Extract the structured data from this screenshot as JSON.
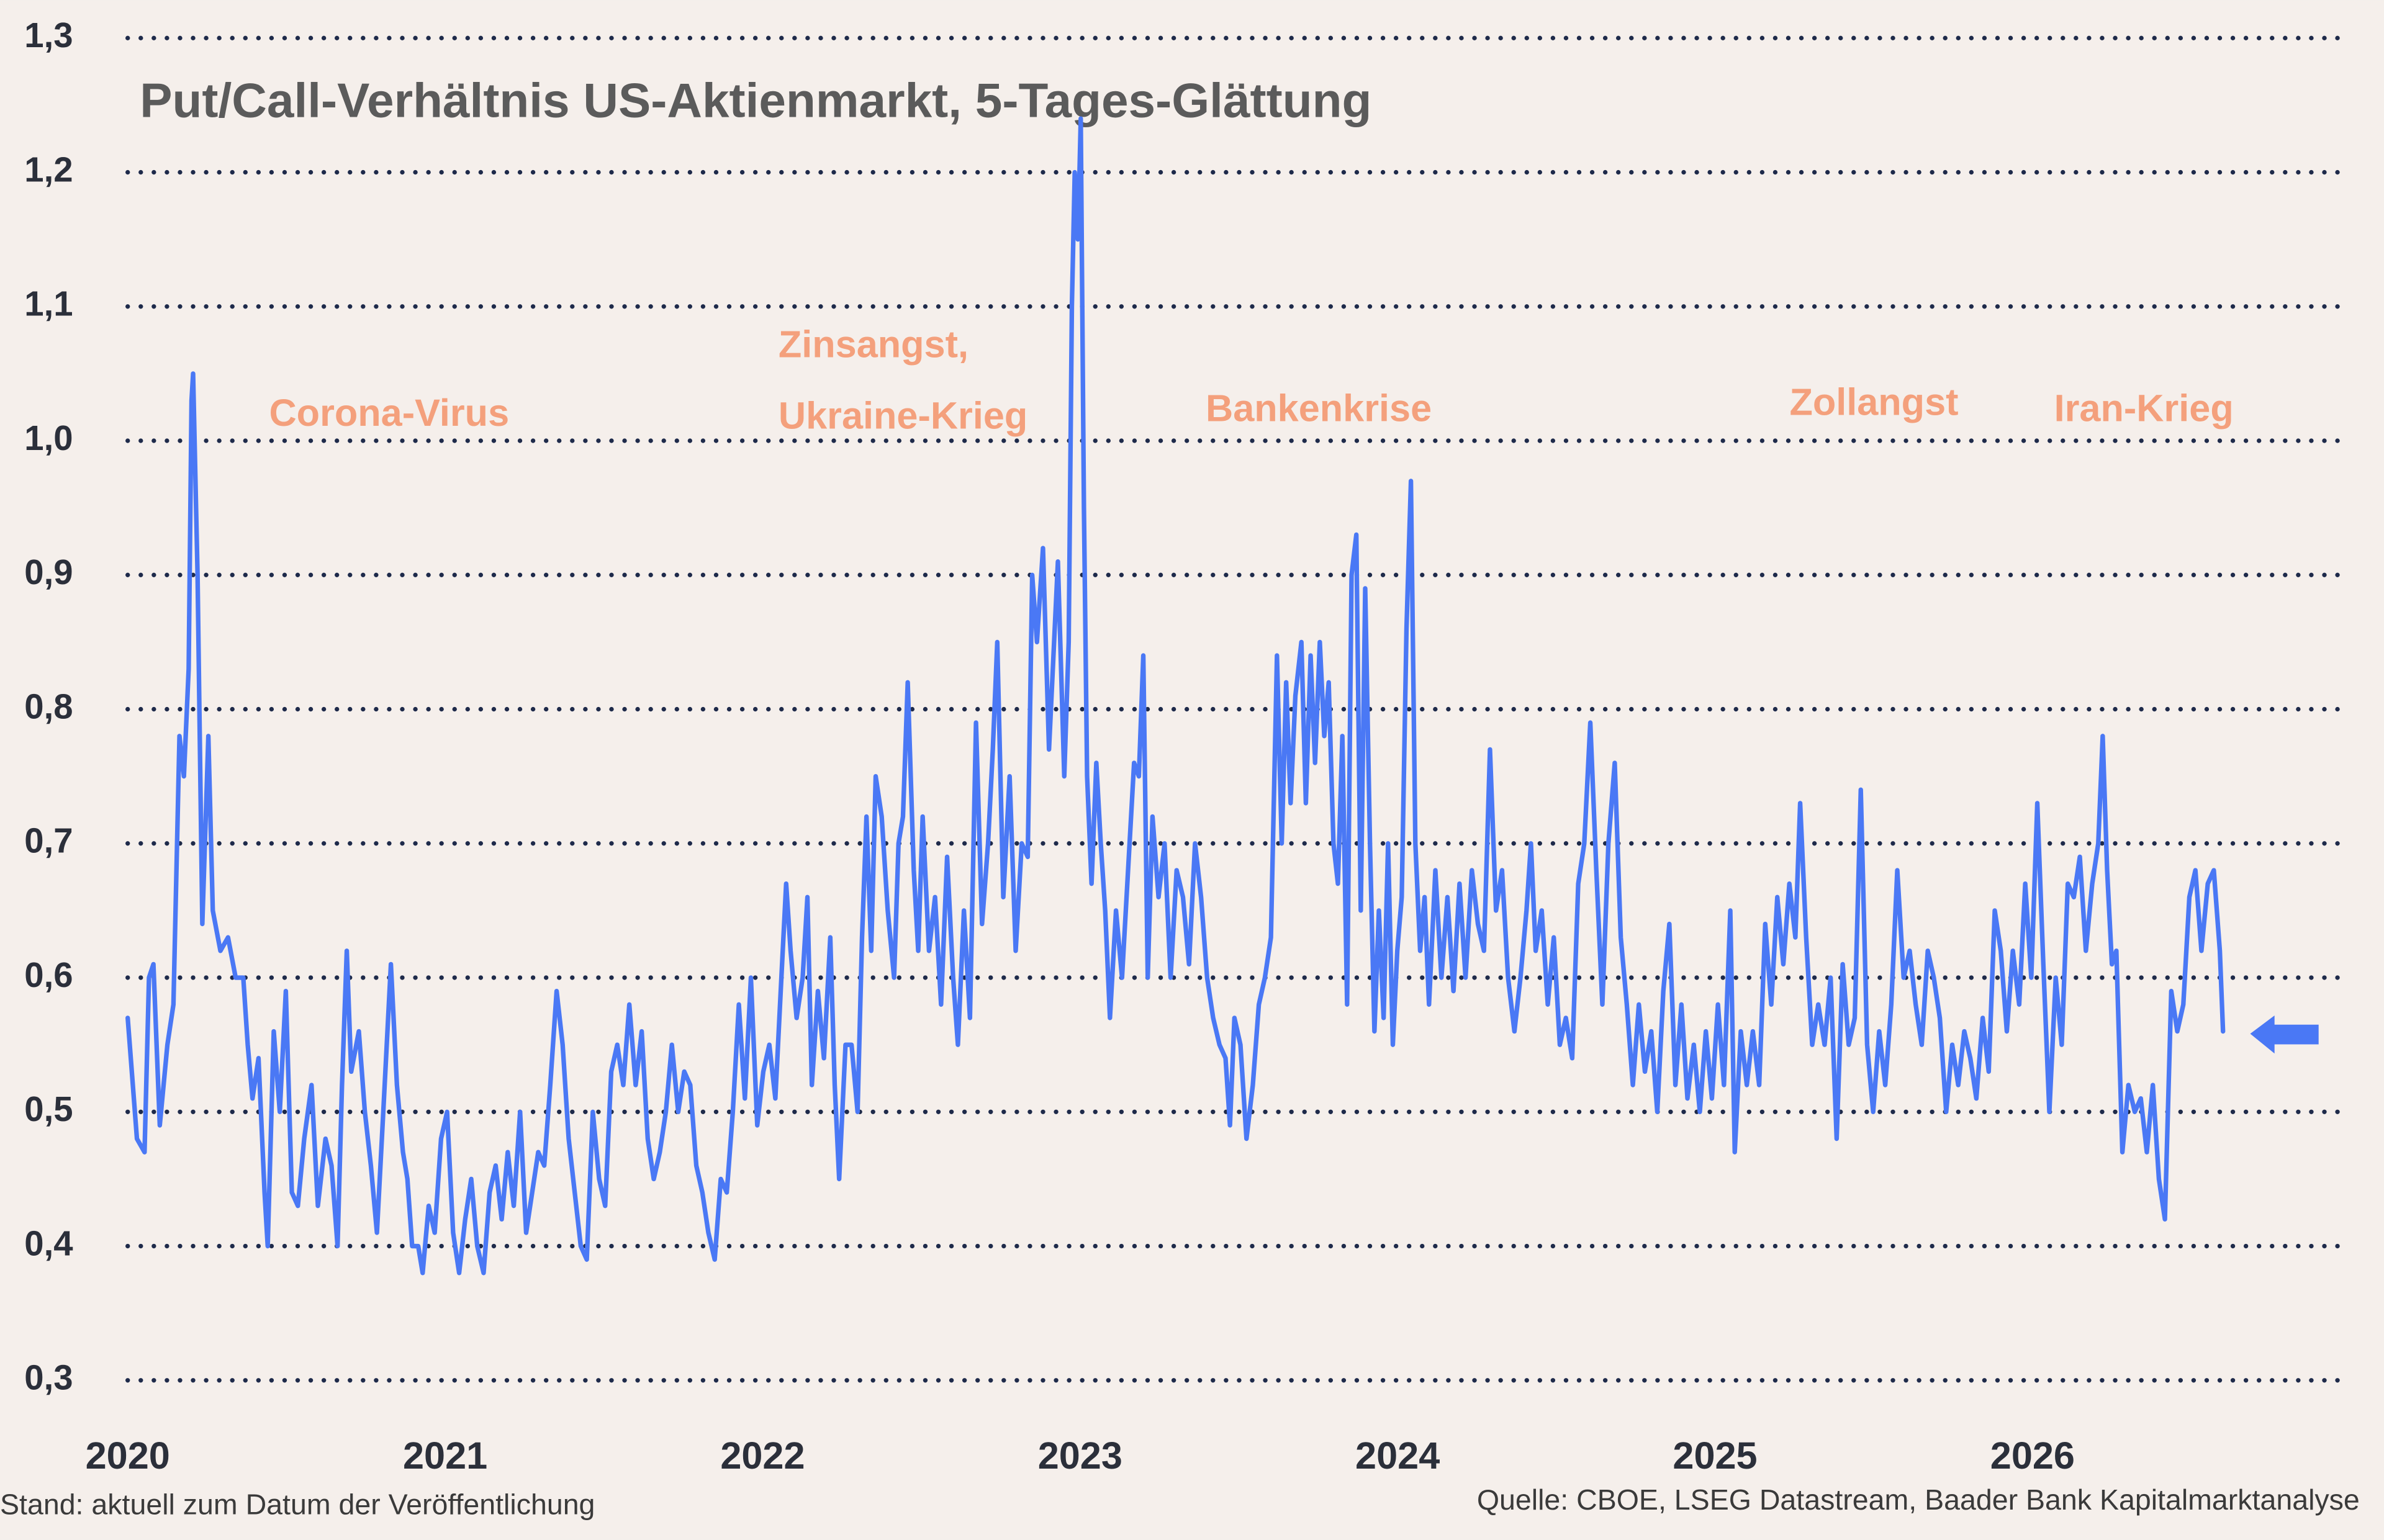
{
  "chart_data": {
    "type": "line",
    "title": "Put/Call-Verhältnis US-Aktienmarkt, 5-Tages-Glättung",
    "annotations": [
      "Corona-Virus",
      "Zinsangst,",
      "Ukraine-Krieg",
      "Bankenkrise",
      "Zollangst",
      "Iran-Krieg"
    ],
    "footer_left": "Stand: aktuell zum Datum der Veröffentlichung",
    "footer_right": "Quelle: CBOE, LSEG Datastream, Baader Bank Kapitalmarktanalyse",
    "color": "#4a78f5",
    "grid": true,
    "xlim": [
      2020,
      2026.973
    ],
    "xticks": [
      2020,
      2021,
      2022,
      2023,
      2024,
      2025,
      2026
    ],
    "ylim": [
      0.3,
      1.3
    ],
    "yticks": [
      {
        "value": 0.3,
        "label": "0,3"
      },
      {
        "value": 0.4,
        "label": "0,4"
      },
      {
        "value": 0.5,
        "label": "0,5"
      },
      {
        "value": 0.6,
        "label": "0,6"
      },
      {
        "value": 0.7,
        "label": "0,7"
      },
      {
        "value": 0.8,
        "label": "0,8"
      },
      {
        "value": 0.9,
        "label": "0,9"
      },
      {
        "value": 1.0,
        "label": "1,0"
      },
      {
        "value": 1.1,
        "label": "1,1"
      },
      {
        "value": 1.2,
        "label": "1,2"
      },
      {
        "value": 1.3,
        "label": "1,3"
      }
    ],
    "x": [
      2020.0,
      2020.029,
      2020.053,
      2020.067,
      2020.081,
      2020.101,
      2020.125,
      2020.144,
      2020.163,
      2020.177,
      2020.192,
      2020.201,
      2020.206,
      2020.22,
      2020.235,
      2020.254,
      2020.268,
      2020.292,
      2020.316,
      2020.34,
      2020.364,
      2020.378,
      2020.393,
      2020.412,
      2020.431,
      2020.441,
      2020.46,
      2020.479,
      2020.498,
      2020.517,
      2020.536,
      2020.556,
      2020.579,
      2020.599,
      2020.623,
      2020.642,
      2020.661,
      2020.675,
      2020.69,
      2020.704,
      2020.728,
      2020.747,
      2020.766,
      2020.785,
      2020.805,
      2020.829,
      2020.848,
      2020.867,
      2020.881,
      2020.896,
      2020.915,
      2020.929,
      2020.948,
      2020.967,
      2020.987,
      2021.006,
      2021.025,
      2021.044,
      2021.063,
      2021.082,
      2021.101,
      2021.121,
      2021.14,
      2021.159,
      2021.178,
      2021.197,
      2021.216,
      2021.236,
      2021.255,
      2021.274,
      2021.293,
      2021.312,
      2021.331,
      2021.351,
      2021.37,
      2021.389,
      2021.408,
      2021.427,
      2021.446,
      2021.465,
      2021.485,
      2021.504,
      2021.523,
      2021.542,
      2021.561,
      2021.58,
      2021.6,
      2021.619,
      2021.638,
      2021.657,
      2021.676,
      2021.695,
      2021.714,
      2021.734,
      2021.753,
      2021.772,
      2021.791,
      2021.81,
      2021.829,
      2021.849,
      2021.868,
      2021.887,
      2021.906,
      2021.925,
      2021.944,
      2021.963,
      2021.983,
      2022.002,
      2022.021,
      2022.04,
      2022.059,
      2022.074,
      2022.088,
      2022.107,
      2022.126,
      2022.141,
      2022.155,
      2022.174,
      2022.193,
      2022.213,
      2022.227,
      2022.241,
      2022.261,
      2022.28,
      2022.299,
      2022.313,
      2022.327,
      2022.342,
      2022.356,
      2022.375,
      2022.394,
      2022.414,
      2022.428,
      2022.442,
      2022.457,
      2022.476,
      2022.49,
      2022.504,
      2022.524,
      2022.543,
      2022.562,
      2022.581,
      2022.6,
      2022.615,
      2022.634,
      2022.653,
      2022.672,
      2022.691,
      2022.71,
      2022.725,
      2022.739,
      2022.758,
      2022.778,
      2022.797,
      2022.816,
      2022.835,
      2022.849,
      2022.864,
      2022.883,
      2022.902,
      2022.916,
      2022.93,
      2022.95,
      2022.964,
      2022.974,
      2022.983,
      2022.993,
      2023.002,
      2023.012,
      2023.022,
      2023.036,
      2023.051,
      2023.065,
      2023.079,
      2023.094,
      2023.113,
      2023.132,
      2023.151,
      2023.17,
      2023.185,
      2023.199,
      2023.213,
      2023.228,
      2023.247,
      2023.266,
      2023.285,
      2023.304,
      2023.324,
      2023.343,
      2023.362,
      2023.381,
      2023.4,
      2023.419,
      2023.439,
      2023.458,
      2023.472,
      2023.486,
      2023.505,
      2023.524,
      2023.544,
      2023.563,
      2023.582,
      2023.601,
      2023.62,
      2023.635,
      2023.649,
      2023.663,
      2023.678,
      2023.697,
      2023.711,
      2023.726,
      2023.74,
      2023.755,
      2023.769,
      2023.783,
      2023.798,
      2023.812,
      2023.826,
      2023.841,
      2023.855,
      2023.87,
      2023.884,
      2023.898,
      2023.913,
      2023.927,
      2023.941,
      2023.956,
      2023.97,
      2023.985,
      2023.999,
      2024.013,
      2024.028,
      2024.042,
      2024.056,
      2024.071,
      2024.085,
      2024.099,
      2024.119,
      2024.138,
      2024.157,
      2024.176,
      2024.195,
      2024.214,
      2024.234,
      2024.253,
      2024.272,
      2024.291,
      2024.31,
      2024.329,
      2024.348,
      2024.368,
      2024.387,
      2024.406,
      2024.42,
      2024.435,
      2024.454,
      2024.473,
      2024.492,
      2024.511,
      2024.53,
      2024.55,
      2024.569,
      2024.588,
      2024.607,
      2024.626,
      2024.645,
      2024.664,
      2024.684,
      2024.703,
      2024.722,
      2024.741,
      2024.76,
      2024.779,
      2024.799,
      2024.818,
      2024.837,
      2024.856,
      2024.875,
      2024.894,
      2024.913,
      2024.933,
      2024.952,
      2024.971,
      2024.99,
      2025.009,
      2025.028,
      2025.048,
      2025.062,
      2025.081,
      2025.1,
      2025.119,
      2025.139,
      2025.158,
      2025.177,
      2025.196,
      2025.215,
      2025.234,
      2025.253,
      2025.268,
      2025.287,
      2025.306,
      2025.325,
      2025.345,
      2025.364,
      2025.383,
      2025.402,
      2025.421,
      2025.44,
      2025.459,
      2025.479,
      2025.498,
      2025.517,
      2025.536,
      2025.555,
      2025.574,
      2025.594,
      2025.613,
      2025.632,
      2025.651,
      2025.67,
      2025.689,
      2025.708,
      2025.728,
      2025.747,
      2025.766,
      2025.785,
      2025.804,
      2025.823,
      2025.843,
      2025.862,
      2025.881,
      2025.9,
      2025.919,
      2025.938,
      2025.958,
      2025.977,
      2025.996,
      2026.015,
      2026.034,
      2026.053,
      2026.073,
      2026.092,
      2026.111,
      2026.13,
      2026.149,
      2026.168,
      2026.188,
      2026.207,
      2026.221,
      2026.235,
      2026.25,
      2026.264,
      2026.283,
      2026.302,
      2026.322,
      2026.341,
      2026.36,
      2026.379,
      2026.398,
      2026.417,
      2026.437,
      2026.456,
      2026.475,
      2026.494,
      2026.513,
      2026.532,
      2026.552,
      2026.571,
      2026.59,
      2026.6
    ],
    "values": [
      0.57,
      0.48,
      0.47,
      0.6,
      0.61,
      0.49,
      0.55,
      0.58,
      0.78,
      0.75,
      0.83,
      1.03,
      1.05,
      0.9,
      0.64,
      0.78,
      0.65,
      0.62,
      0.63,
      0.6,
      0.6,
      0.55,
      0.51,
      0.54,
      0.44,
      0.4,
      0.56,
      0.5,
      0.59,
      0.44,
      0.43,
      0.48,
      0.52,
      0.43,
      0.48,
      0.46,
      0.4,
      0.52,
      0.62,
      0.53,
      0.56,
      0.5,
      0.46,
      0.41,
      0.5,
      0.61,
      0.52,
      0.47,
      0.45,
      0.4,
      0.4,
      0.38,
      0.43,
      0.41,
      0.48,
      0.5,
      0.41,
      0.38,
      0.42,
      0.45,
      0.4,
      0.38,
      0.44,
      0.46,
      0.42,
      0.47,
      0.43,
      0.5,
      0.41,
      0.44,
      0.47,
      0.46,
      0.52,
      0.59,
      0.55,
      0.48,
      0.44,
      0.4,
      0.39,
      0.5,
      0.45,
      0.43,
      0.53,
      0.55,
      0.52,
      0.58,
      0.52,
      0.56,
      0.48,
      0.45,
      0.47,
      0.5,
      0.55,
      0.5,
      0.53,
      0.52,
      0.46,
      0.44,
      0.41,
      0.39,
      0.45,
      0.44,
      0.5,
      0.58,
      0.51,
      0.6,
      0.49,
      0.53,
      0.55,
      0.51,
      0.6,
      0.67,
      0.62,
      0.57,
      0.6,
      0.66,
      0.52,
      0.59,
      0.54,
      0.63,
      0.52,
      0.45,
      0.55,
      0.55,
      0.5,
      0.63,
      0.72,
      0.62,
      0.75,
      0.72,
      0.65,
      0.6,
      0.7,
      0.72,
      0.82,
      0.68,
      0.62,
      0.72,
      0.62,
      0.66,
      0.58,
      0.69,
      0.6,
      0.55,
      0.65,
      0.57,
      0.79,
      0.64,
      0.7,
      0.77,
      0.85,
      0.66,
      0.75,
      0.62,
      0.7,
      0.69,
      0.9,
      0.85,
      0.92,
      0.77,
      0.84,
      0.91,
      0.75,
      0.85,
      1.1,
      1.2,
      1.15,
      1.24,
      0.95,
      0.75,
      0.67,
      0.76,
      0.7,
      0.65,
      0.57,
      0.65,
      0.6,
      0.68,
      0.76,
      0.75,
      0.84,
      0.6,
      0.72,
      0.66,
      0.7,
      0.6,
      0.68,
      0.66,
      0.61,
      0.7,
      0.66,
      0.6,
      0.57,
      0.55,
      0.54,
      0.49,
      0.57,
      0.55,
      0.48,
      0.52,
      0.58,
      0.6,
      0.63,
      0.84,
      0.7,
      0.82,
      0.73,
      0.81,
      0.85,
      0.73,
      0.84,
      0.76,
      0.85,
      0.78,
      0.82,
      0.7,
      0.67,
      0.78,
      0.58,
      0.9,
      0.93,
      0.65,
      0.89,
      0.7,
      0.56,
      0.65,
      0.57,
      0.7,
      0.55,
      0.62,
      0.66,
      0.86,
      0.97,
      0.7,
      0.62,
      0.66,
      0.58,
      0.68,
      0.6,
      0.66,
      0.59,
      0.67,
      0.6,
      0.68,
      0.64,
      0.62,
      0.77,
      0.65,
      0.68,
      0.6,
      0.56,
      0.6,
      0.65,
      0.7,
      0.62,
      0.65,
      0.58,
      0.63,
      0.55,
      0.57,
      0.54,
      0.67,
      0.7,
      0.79,
      0.68,
      0.58,
      0.7,
      0.76,
      0.63,
      0.58,
      0.52,
      0.58,
      0.53,
      0.56,
      0.5,
      0.59,
      0.64,
      0.52,
      0.58,
      0.51,
      0.55,
      0.5,
      0.56,
      0.51,
      0.58,
      0.52,
      0.65,
      0.47,
      0.56,
      0.52,
      0.56,
      0.52,
      0.64,
      0.58,
      0.66,
      0.61,
      0.67,
      0.63,
      0.73,
      0.63,
      0.55,
      0.58,
      0.55,
      0.6,
      0.48,
      0.61,
      0.55,
      0.57,
      0.74,
      0.55,
      0.5,
      0.56,
      0.52,
      0.58,
      0.68,
      0.6,
      0.62,
      0.58,
      0.55,
      0.62,
      0.6,
      0.57,
      0.5,
      0.55,
      0.52,
      0.56,
      0.54,
      0.51,
      0.57,
      0.53,
      0.65,
      0.62,
      0.56,
      0.62,
      0.58,
      0.67,
      0.6,
      0.73,
      0.61,
      0.5,
      0.6,
      0.55,
      0.67,
      0.66,
      0.69,
      0.62,
      0.67,
      0.7,
      0.78,
      0.68,
      0.61,
      0.62,
      0.47,
      0.52,
      0.5,
      0.51,
      0.47,
      0.52,
      0.45,
      0.42,
      0.59,
      0.56,
      0.58,
      0.66,
      0.68,
      0.62,
      0.67,
      0.68,
      0.62,
      0.56
    ]
  }
}
